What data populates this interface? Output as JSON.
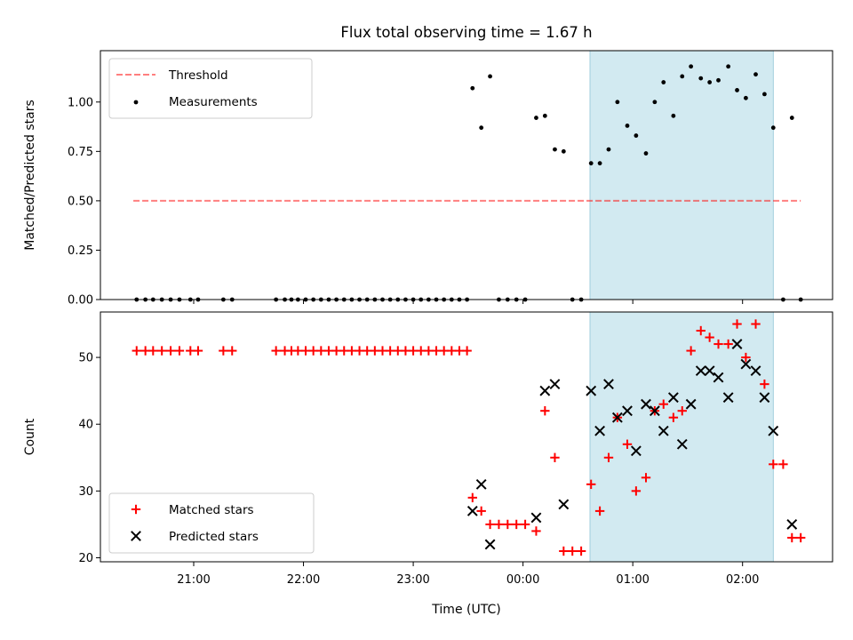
{
  "chart_data": {
    "title": "Flux total observing time = 1.67 h",
    "x_label": "Time (UTC)",
    "x_units": "hours relative to 00:00 UTC",
    "xlim": [
      -3.85,
      2.82
    ],
    "x_tick_values": [
      -3,
      -2,
      -1,
      0,
      1,
      2
    ],
    "x_tick_labels": [
      "21:00",
      "22:00",
      "23:00",
      "00:00",
      "01:00",
      "02:00"
    ],
    "highlight_span": {
      "x_start": 0.61,
      "x_end": 2.28,
      "color": "#add8e6"
    },
    "top": {
      "type": "scatter",
      "ylabel": "Matched/Predicted stars",
      "ylim": [
        0,
        1.26
      ],
      "y_ticks": [
        0.0,
        0.25,
        0.5,
        0.75,
        1.0
      ],
      "y_tick_labels": [
        "0.00",
        "0.25",
        "0.50",
        "0.75",
        "1.00"
      ],
      "threshold": {
        "name": "Threshold",
        "y": 0.5,
        "x_start": -3.55,
        "x_end": 2.53,
        "color": "#ff0000",
        "opacity": 0.5
      },
      "series": [
        {
          "name": "Measurements",
          "color": "#000000",
          "points": [
            [
              -3.52,
              0
            ],
            [
              -3.44,
              0
            ],
            [
              -3.37,
              0
            ],
            [
              -3.29,
              0
            ],
            [
              -3.21,
              0
            ],
            [
              -3.13,
              0
            ],
            [
              -3.03,
              0
            ],
            [
              -2.96,
              0
            ],
            [
              -2.73,
              0
            ],
            [
              -2.65,
              0
            ],
            [
              -2.25,
              0
            ],
            [
              -2.17,
              0
            ],
            [
              -2.11,
              0
            ],
            [
              -2.05,
              0
            ],
            [
              -1.98,
              0
            ],
            [
              -1.91,
              0
            ],
            [
              -1.84,
              0
            ],
            [
              -1.77,
              0
            ],
            [
              -1.7,
              0
            ],
            [
              -1.63,
              0
            ],
            [
              -1.56,
              0
            ],
            [
              -1.49,
              0
            ],
            [
              -1.42,
              0
            ],
            [
              -1.35,
              0
            ],
            [
              -1.28,
              0
            ],
            [
              -1.21,
              0
            ],
            [
              -1.14,
              0
            ],
            [
              -1.07,
              0
            ],
            [
              -1.0,
              0
            ],
            [
              -0.93,
              0
            ],
            [
              -0.86,
              0
            ],
            [
              -0.79,
              0
            ],
            [
              -0.72,
              0
            ],
            [
              -0.65,
              0
            ],
            [
              -0.58,
              0
            ],
            [
              -0.51,
              0
            ],
            [
              -0.46,
              1.07
            ],
            [
              -0.38,
              0.87
            ],
            [
              -0.3,
              1.13
            ],
            [
              -0.22,
              0
            ],
            [
              -0.14,
              0
            ],
            [
              -0.06,
              0
            ],
            [
              0.02,
              0
            ],
            [
              0.12,
              0.92
            ],
            [
              0.2,
              0.93
            ],
            [
              0.29,
              0.76
            ],
            [
              0.37,
              0.75
            ],
            [
              0.45,
              0
            ],
            [
              0.53,
              0
            ],
            [
              0.62,
              0.69
            ],
            [
              0.7,
              0.69
            ],
            [
              0.78,
              0.76
            ],
            [
              0.86,
              1.0
            ],
            [
              0.95,
              0.88
            ],
            [
              1.03,
              0.83
            ],
            [
              1.12,
              0.74
            ],
            [
              1.2,
              1.0
            ],
            [
              1.28,
              1.1
            ],
            [
              1.37,
              0.93
            ],
            [
              1.45,
              1.13
            ],
            [
              1.53,
              1.18
            ],
            [
              1.62,
              1.12
            ],
            [
              1.7,
              1.1
            ],
            [
              1.78,
              1.11
            ],
            [
              1.87,
              1.18
            ],
            [
              1.95,
              1.06
            ],
            [
              2.03,
              1.02
            ],
            [
              2.12,
              1.14
            ],
            [
              2.2,
              1.04
            ],
            [
              2.28,
              0.87
            ],
            [
              2.37,
              0
            ],
            [
              2.53,
              0
            ],
            [
              2.45,
              0.92
            ]
          ]
        }
      ],
      "legend": {
        "location": "upper left",
        "entries": [
          "Threshold",
          "Measurements"
        ]
      }
    },
    "bottom": {
      "type": "scatter",
      "ylabel": "Count",
      "ylim": [
        19.4,
        56.8
      ],
      "y_ticks": [
        20,
        30,
        40,
        50
      ],
      "y_tick_labels": [
        "20",
        "30",
        "40",
        "50"
      ],
      "series": [
        {
          "name": "Matched stars",
          "marker": "+",
          "color": "#ff0000",
          "points": [
            [
              -3.52,
              51
            ],
            [
              -3.44,
              51
            ],
            [
              -3.37,
              51
            ],
            [
              -3.29,
              51
            ],
            [
              -3.21,
              51
            ],
            [
              -3.13,
              51
            ],
            [
              -3.03,
              51
            ],
            [
              -2.96,
              51
            ],
            [
              -2.73,
              51
            ],
            [
              -2.65,
              51
            ],
            [
              -2.25,
              51
            ],
            [
              -2.17,
              51
            ],
            [
              -2.11,
              51
            ],
            [
              -2.05,
              51
            ],
            [
              -1.98,
              51
            ],
            [
              -1.91,
              51
            ],
            [
              -1.84,
              51
            ],
            [
              -1.77,
              51
            ],
            [
              -1.7,
              51
            ],
            [
              -1.63,
              51
            ],
            [
              -1.56,
              51
            ],
            [
              -1.49,
              51
            ],
            [
              -1.42,
              51
            ],
            [
              -1.35,
              51
            ],
            [
              -1.28,
              51
            ],
            [
              -1.21,
              51
            ],
            [
              -1.14,
              51
            ],
            [
              -1.07,
              51
            ],
            [
              -1.0,
              51
            ],
            [
              -0.93,
              51
            ],
            [
              -0.86,
              51
            ],
            [
              -0.79,
              51
            ],
            [
              -0.72,
              51
            ],
            [
              -0.65,
              51
            ],
            [
              -0.58,
              51
            ],
            [
              -0.51,
              51
            ],
            [
              -0.46,
              29
            ],
            [
              -0.38,
              27
            ],
            [
              -0.3,
              25
            ],
            [
              -0.22,
              25
            ],
            [
              -0.14,
              25
            ],
            [
              -0.06,
              25
            ],
            [
              0.02,
              25
            ],
            [
              0.12,
              24
            ],
            [
              0.2,
              42
            ],
            [
              0.29,
              35
            ],
            [
              0.37,
              21
            ],
            [
              0.45,
              21
            ],
            [
              0.53,
              21
            ],
            [
              0.62,
              31
            ],
            [
              0.7,
              27
            ],
            [
              0.78,
              35
            ],
            [
              0.86,
              41
            ],
            [
              0.95,
              37
            ],
            [
              1.03,
              30
            ],
            [
              1.12,
              32
            ],
            [
              1.2,
              42
            ],
            [
              1.28,
              43
            ],
            [
              1.37,
              41
            ],
            [
              1.45,
              42
            ],
            [
              1.53,
              51
            ],
            [
              1.62,
              54
            ],
            [
              1.7,
              53
            ],
            [
              1.78,
              52
            ],
            [
              1.87,
              52
            ],
            [
              1.95,
              55
            ],
            [
              2.03,
              50
            ],
            [
              2.12,
              55
            ],
            [
              2.2,
              46
            ],
            [
              2.28,
              34
            ],
            [
              2.37,
              34
            ],
            [
              2.45,
              23
            ],
            [
              2.53,
              23
            ]
          ]
        },
        {
          "name": "Predicted stars",
          "marker": "x",
          "color": "#000000",
          "points": [
            [
              -0.46,
              27
            ],
            [
              -0.38,
              31
            ],
            [
              -0.3,
              22
            ],
            [
              0.12,
              26
            ],
            [
              0.2,
              45
            ],
            [
              0.29,
              46
            ],
            [
              0.37,
              28
            ],
            [
              0.62,
              45
            ],
            [
              0.7,
              39
            ],
            [
              0.78,
              46
            ],
            [
              0.86,
              41
            ],
            [
              0.95,
              42
            ],
            [
              1.03,
              36
            ],
            [
              1.12,
              43
            ],
            [
              1.2,
              42
            ],
            [
              1.28,
              39
            ],
            [
              1.37,
              44
            ],
            [
              1.45,
              37
            ],
            [
              1.53,
              43
            ],
            [
              1.62,
              48
            ],
            [
              1.7,
              48
            ],
            [
              1.78,
              47
            ],
            [
              1.87,
              44
            ],
            [
              1.95,
              52
            ],
            [
              2.03,
              49
            ],
            [
              2.12,
              48
            ],
            [
              2.2,
              44
            ],
            [
              2.28,
              39
            ],
            [
              2.45,
              25
            ]
          ]
        }
      ],
      "legend": {
        "location": "lower left",
        "entries": [
          "Matched stars",
          "Predicted stars"
        ]
      }
    }
  }
}
